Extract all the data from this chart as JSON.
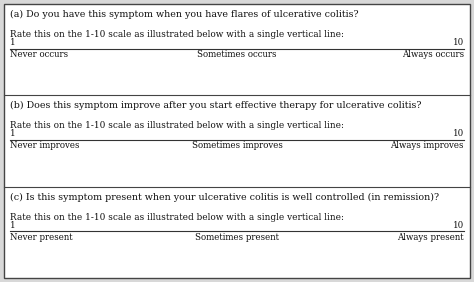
{
  "sections": [
    {
      "label": "(a) Do you have this symptom when you have flares of ulcerative colitis?",
      "instruction": "Rate this on the 1-10 scale as illustrated below with a single vertical line:",
      "left_anchor": "Never occurs",
      "mid_anchor": "Sometimes occurs",
      "right_anchor": "Always occurs"
    },
    {
      "label": "(b) Does this symptom improve after you start effective therapy for ulcerative colitis?",
      "instruction": "Rate this on the 1-10 scale as illustrated below with a single vertical line:",
      "left_anchor": "Never improves",
      "mid_anchor": "Sometimes improves",
      "right_anchor": "Always improves"
    },
    {
      "label": "(c) Is this symptom present when your ulcerative colitis is well controlled (in remission)?",
      "instruction": "Rate this on the 1-10 scale as illustrated below with a single vertical line:",
      "left_anchor": "Never present",
      "mid_anchor": "Sometimes present",
      "right_anchor": "Always present"
    }
  ],
  "scale_left": "1",
  "scale_right": "10",
  "bg_color": "#d8d8d8",
  "box_color": "#ffffff",
  "border_color": "#444444",
  "text_color": "#111111",
  "line_color": "#333333",
  "font_size_label": 6.8,
  "font_size_instruction": 6.4,
  "font_size_anchor": 6.2,
  "font_size_scale": 6.2
}
